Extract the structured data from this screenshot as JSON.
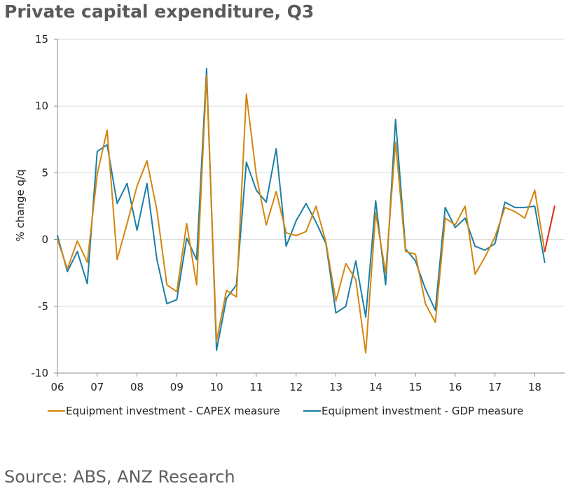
{
  "title": "Private capital expenditure, Q3",
  "source": "Source: ABS, ANZ Research",
  "chart_data": {
    "type": "line",
    "title": "Private capital expenditure, Q3",
    "ylabel": "% change q/q",
    "xlabel": "",
    "ylim": [
      -10,
      15
    ],
    "yticks": [
      15,
      10,
      5,
      0,
      -5,
      -10
    ],
    "xticks": [
      "06",
      "07",
      "08",
      "09",
      "10",
      "11",
      "12",
      "13",
      "14",
      "15",
      "16",
      "17",
      "18"
    ],
    "x_start_year": 2006,
    "grid": "horizontal",
    "legend": "bottom",
    "series": [
      {
        "name": "Equipment investment - CAPEX measure",
        "color": "#D4860E",
        "values": [
          0.0,
          -2.2,
          -0.1,
          -1.7,
          4.9,
          8.2,
          -1.5,
          1.2,
          4.0,
          5.9,
          2.2,
          -3.4,
          -3.9,
          1.2,
          -3.4,
          12.3,
          -7.6,
          -3.8,
          -4.3,
          10.9,
          4.8,
          1.1,
          3.6,
          0.5,
          0.3,
          0.6,
          2.5,
          -0.2,
          -4.6,
          -1.8,
          -3.0,
          -8.5,
          2.0,
          -2.5,
          7.3,
          -0.9,
          -1.1,
          -4.8,
          -6.2,
          1.6,
          1.1,
          2.5,
          -2.6,
          -1.3,
          0.2,
          2.4,
          2.1,
          1.6,
          3.7,
          -0.9
        ]
      },
      {
        "name": "Equipment investment - GDP measure",
        "color": "#1B7FA6",
        "values": [
          0.3,
          -2.4,
          -0.9,
          -3.3,
          6.6,
          7.1,
          2.7,
          4.2,
          0.7,
          4.2,
          -1.5,
          -4.8,
          -4.5,
          0.1,
          -1.5,
          12.8,
          -8.3,
          -4.4,
          -3.4,
          5.8,
          3.7,
          2.8,
          6.8,
          -0.5,
          1.4,
          2.7,
          1.3,
          -0.3,
          -5.5,
          -5.0,
          -1.6,
          -5.8,
          2.9,
          -3.4,
          9.0,
          -0.7,
          -1.6,
          -3.7,
          -5.3,
          2.4,
          0.9,
          1.6,
          -0.5,
          -0.8,
          -0.3,
          2.8,
          2.4,
          2.4,
          2.5,
          -1.7
        ]
      },
      {
        "name": "",
        "color": "#E0261B",
        "start_index": 49,
        "values": [
          -0.9,
          2.5
        ]
      }
    ]
  }
}
